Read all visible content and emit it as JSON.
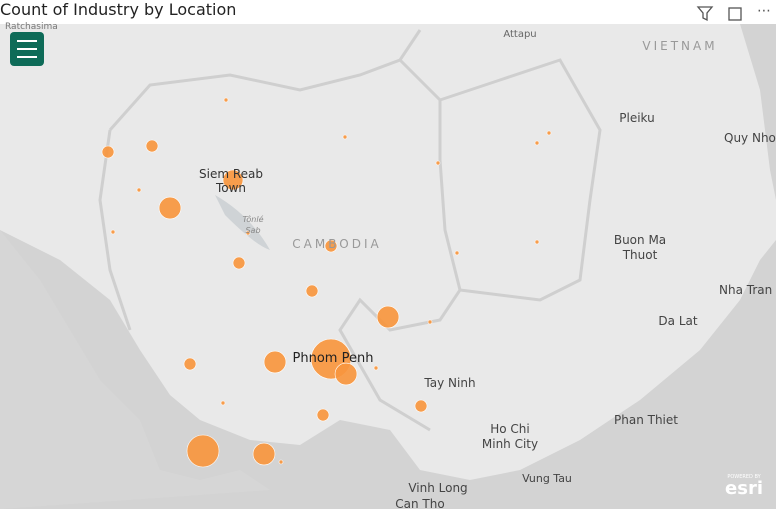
{
  "header": {
    "title": "Count of Industry by Location"
  },
  "map": {
    "labels": [
      "Ratchasima",
      "Attapu",
      "VIETNAM",
      "Pleiku",
      "Quy Nho",
      "Siem Reab",
      "Town",
      "Tônlé",
      "Sab",
      "CAMBODIA",
      "Buon Ma",
      "Thuot",
      "Nha Tran",
      "Da Lat",
      "Phnom Penh",
      "Tay Ninh",
      "Ho Chi",
      "Minh City",
      "Phan Thiet",
      "Vung Tau",
      "Vinh Long",
      "Can Tho"
    ],
    "attribution": [
      "POWERED BY",
      "esri"
    ],
    "bubble_color": "#f7963e",
    "bubbles": [
      9,
      9,
      1,
      1,
      1,
      1,
      1,
      1,
      25,
      30,
      1,
      1,
      9,
      1,
      1,
      9,
      9,
      30,
      1,
      9,
      30,
      100,
      30,
      1,
      1,
      9,
      9,
      64,
      30,
      1
    ]
  }
}
